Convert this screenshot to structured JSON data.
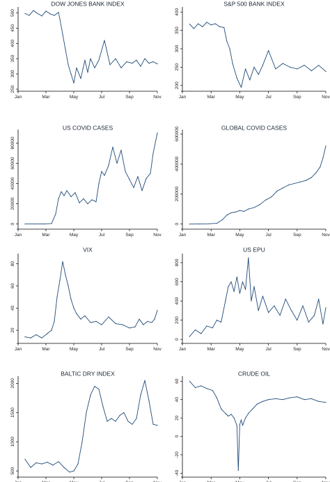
{
  "figure": {
    "colors": {
      "line": "#1f4a78",
      "axis": "#000000",
      "text": "#1a2433"
    }
  },
  "chart_data": [
    {
      "type": "line",
      "title": "DOW JONES BANK INDEX",
      "xticks": [
        "Jan",
        "Mar",
        "May",
        "Jul",
        "Sep",
        "Nov"
      ],
      "yticks": [
        250,
        300,
        350,
        400,
        450,
        500
      ],
      "ylim": [
        250,
        515
      ],
      "x": [
        0.05,
        0.08,
        0.11,
        0.14,
        0.17,
        0.2,
        0.23,
        0.26,
        0.29,
        0.3,
        0.32,
        0.34,
        0.36,
        0.38,
        0.4,
        0.42,
        0.45,
        0.48,
        0.5,
        0.52,
        0.55,
        0.58,
        0.62,
        0.66,
        0.7,
        0.74,
        0.78,
        0.82,
        0.85,
        0.88,
        0.91,
        0.94,
        0.97,
        1.0
      ],
      "values": [
        498,
        492,
        508,
        498,
        490,
        506,
        497,
        492,
        502,
        480,
        430,
        380,
        330,
        300,
        270,
        320,
        285,
        345,
        305,
        350,
        320,
        345,
        410,
        330,
        350,
        320,
        340,
        335,
        345,
        325,
        350,
        335,
        340,
        333
      ]
    },
    {
      "type": "line",
      "title": "S&P 500 BANK INDEX",
      "xticks": [
        "Jan",
        "Mar",
        "May",
        "Jul",
        "Sep",
        "Nov"
      ],
      "yticks": [
        200,
        250,
        300,
        350,
        400
      ],
      "ylim": [
        190,
        410
      ],
      "x": [
        0.05,
        0.08,
        0.11,
        0.14,
        0.17,
        0.2,
        0.23,
        0.26,
        0.29,
        0.31,
        0.33,
        0.35,
        0.38,
        0.41,
        0.44,
        0.47,
        0.5,
        0.53,
        0.56,
        0.6,
        0.65,
        0.7,
        0.75,
        0.8,
        0.85,
        0.9,
        0.95,
        1.0
      ],
      "values": [
        367,
        355,
        368,
        360,
        372,
        365,
        368,
        360,
        358,
        320,
        300,
        260,
        220,
        195,
        245,
        215,
        250,
        230,
        255,
        295,
        245,
        260,
        250,
        245,
        255,
        240,
        255,
        238
      ]
    },
    {
      "type": "line",
      "title": "US COVID CASES",
      "xticks": [
        "Jan",
        "Mar",
        "May",
        "Jul",
        "Sep",
        "Nov"
      ],
      "yticks": [
        0,
        20000,
        40000,
        60000,
        80000
      ],
      "ylim": [
        -3000,
        92000
      ],
      "x": [
        0.05,
        0.12,
        0.18,
        0.24,
        0.27,
        0.29,
        0.31,
        0.33,
        0.35,
        0.38,
        0.41,
        0.44,
        0.47,
        0.5,
        0.53,
        0.56,
        0.58,
        0.6,
        0.62,
        0.65,
        0.68,
        0.71,
        0.74,
        0.77,
        0.8,
        0.83,
        0.86,
        0.89,
        0.92,
        0.95,
        0.97,
        1.0
      ],
      "values": [
        0,
        0,
        0,
        500,
        10000,
        25000,
        32000,
        28000,
        33000,
        27000,
        31000,
        21000,
        25000,
        20000,
        24000,
        22000,
        40000,
        52000,
        48000,
        58000,
        76000,
        60000,
        73000,
        52000,
        44000,
        36000,
        47000,
        33000,
        45000,
        50000,
        70000,
        90000
      ]
    },
    {
      "type": "line",
      "title": "GLOBAL COVID CASES",
      "xticks": [
        "Jan",
        "Mar",
        "May",
        "Jul",
        "Sep",
        "Nov"
      ],
      "yticks": [
        0,
        200000,
        400000,
        600000
      ],
      "ylim": [
        -20000,
        620000
      ],
      "x": [
        0.05,
        0.12,
        0.18,
        0.24,
        0.28,
        0.31,
        0.34,
        0.37,
        0.4,
        0.43,
        0.46,
        0.5,
        0.54,
        0.58,
        0.62,
        0.66,
        0.7,
        0.74,
        0.78,
        0.82,
        0.86,
        0.9,
        0.93,
        0.96,
        0.98,
        1.0
      ],
      "values": [
        0,
        500,
        2000,
        5000,
        30000,
        60000,
        75000,
        80000,
        90000,
        85000,
        100000,
        110000,
        130000,
        160000,
        180000,
        220000,
        240000,
        260000,
        270000,
        280000,
        290000,
        310000,
        340000,
        380000,
        440000,
        520000
      ]
    },
    {
      "type": "line",
      "title": "VIX",
      "xticks": [
        "Jan",
        "Mar",
        "May",
        "Jul",
        "Sep",
        "Nov"
      ],
      "yticks": [
        20,
        40,
        60,
        80
      ],
      "ylim": [
        10,
        88
      ],
      "x": [
        0.05,
        0.09,
        0.13,
        0.17,
        0.21,
        0.24,
        0.26,
        0.28,
        0.3,
        0.32,
        0.34,
        0.36,
        0.38,
        0.4,
        0.42,
        0.45,
        0.48,
        0.52,
        0.56,
        0.6,
        0.65,
        0.7,
        0.75,
        0.8,
        0.84,
        0.87,
        0.9,
        0.93,
        0.96,
        0.98,
        1.0
      ],
      "values": [
        14,
        13,
        16,
        13,
        17,
        20,
        28,
        50,
        65,
        82,
        70,
        60,
        48,
        40,
        35,
        30,
        33,
        27,
        28,
        25,
        32,
        26,
        25,
        22,
        23,
        30,
        25,
        28,
        27,
        30,
        38
      ]
    },
    {
      "type": "line",
      "title": "US EPU",
      "xticks": [
        "Jan",
        "Mar",
        "May",
        "Jul",
        "Sep",
        "Nov"
      ],
      "yticks": [
        0,
        200,
        400,
        600,
        800
      ],
      "ylim": [
        -20,
        880
      ],
      "x": [
        0.05,
        0.09,
        0.13,
        0.17,
        0.21,
        0.24,
        0.27,
        0.3,
        0.32,
        0.34,
        0.36,
        0.38,
        0.4,
        0.42,
        0.44,
        0.46,
        0.48,
        0.5,
        0.53,
        0.56,
        0.6,
        0.64,
        0.68,
        0.72,
        0.76,
        0.8,
        0.84,
        0.88,
        0.92,
        0.95,
        0.98,
        1.0
      ],
      "values": [
        30,
        100,
        60,
        140,
        120,
        200,
        180,
        400,
        550,
        600,
        500,
        650,
        480,
        600,
        520,
        850,
        400,
        550,
        300,
        450,
        280,
        350,
        250,
        420,
        300,
        200,
        350,
        180,
        250,
        420,
        160,
        330
      ]
    },
    {
      "type": "line",
      "title": "BALTIC DRY INDEX",
      "xticks": [
        "Jan",
        "Mar",
        "May",
        "Jul",
        "Sep",
        "Nov"
      ],
      "yticks": [
        500,
        1000,
        1500,
        2000
      ],
      "ylim": [
        430,
        2100
      ],
      "x": [
        0.05,
        0.09,
        0.13,
        0.17,
        0.21,
        0.25,
        0.29,
        0.33,
        0.37,
        0.4,
        0.43,
        0.46,
        0.49,
        0.52,
        0.55,
        0.58,
        0.61,
        0.64,
        0.67,
        0.7,
        0.73,
        0.76,
        0.79,
        0.82,
        0.85,
        0.88,
        0.91,
        0.94,
        0.97,
        1.0
      ],
      "values": [
        700,
        560,
        640,
        620,
        650,
        600,
        660,
        560,
        480,
        500,
        620,
        1000,
        1500,
        1800,
        1950,
        1900,
        1600,
        1350,
        1400,
        1350,
        1450,
        1500,
        1350,
        1300,
        1400,
        1800,
        2050,
        1700,
        1300,
        1280
      ]
    },
    {
      "type": "line",
      "title": "CRUDE OIL",
      "xticks": [
        "Jan",
        "Mar",
        "May",
        "Jul",
        "Sep",
        "Nov"
      ],
      "yticks": [
        -40,
        -20,
        0,
        20,
        40,
        60
      ],
      "ylim": [
        -42,
        64
      ],
      "x": [
        0.05,
        0.09,
        0.13,
        0.17,
        0.21,
        0.24,
        0.27,
        0.3,
        0.32,
        0.34,
        0.36,
        0.38,
        0.39,
        0.4,
        0.41,
        0.42,
        0.44,
        0.46,
        0.49,
        0.52,
        0.56,
        0.6,
        0.65,
        0.7,
        0.75,
        0.8,
        0.85,
        0.9,
        0.95,
        1.0
      ],
      "values": [
        60,
        53,
        55,
        52,
        50,
        42,
        30,
        25,
        22,
        24,
        20,
        12,
        -37,
        13,
        18,
        12,
        20,
        25,
        30,
        35,
        38,
        40,
        41,
        40,
        42,
        43,
        40,
        41,
        38,
        37
      ]
    }
  ]
}
